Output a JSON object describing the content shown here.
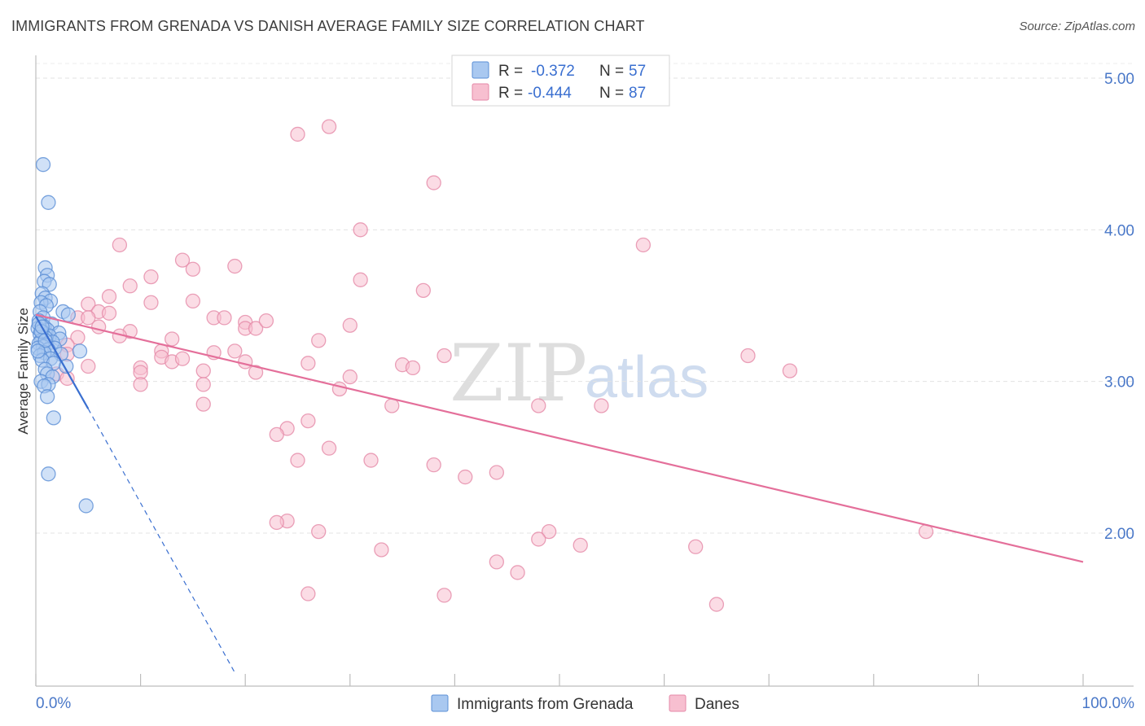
{
  "title": "IMMIGRANTS FROM GRENADA VS DANISH AVERAGE FAMILY SIZE CORRELATION CHART",
  "source": "Source: ZipAtlas.com",
  "watermark": {
    "zip": "ZIP",
    "atlas": "atlas"
  },
  "legend_top": [
    {
      "r_label": "R =",
      "r_value": "-0.372",
      "n_label": "N =",
      "n_value": "57",
      "color": "#a9c8f0",
      "edge": "#5b8fd6"
    },
    {
      "r_label": "R =",
      "r_value": "-0.444",
      "n_label": "N =",
      "n_value": "87",
      "color": "#f7bfd0",
      "edge": "#e58aa8"
    }
  ],
  "legend_bottom": [
    "Immigrants from Grenada",
    "Danes"
  ],
  "chart_data": {
    "type": "scatter",
    "title": "IMMIGRANTS FROM GRENADA VS DANISH AVERAGE FAMILY SIZE CORRELATION CHART",
    "xlabel": "",
    "ylabel": "Average Family Size",
    "xlim": [
      0,
      100
    ],
    "ylim": [
      1.0,
      5.2
    ],
    "x_tick_labels": [
      "0.0%",
      "100.0%"
    ],
    "y_ticks": [
      2.0,
      3.0,
      4.0,
      5.0
    ],
    "y_tick_labels": [
      "2.00",
      "3.00",
      "4.00",
      "5.00"
    ],
    "series": [
      {
        "name": "Immigrants from Grenada",
        "color": "#a9c8f0",
        "edge": "#5b8fd6",
        "trend": {
          "x0": 0,
          "y0": 3.43,
          "x1": 5,
          "y1": 2.82,
          "dash_x1": 19,
          "dash_y1": 1.08,
          "color": "#3a6fd0"
        },
        "points": [
          [
            0.7,
            4.43
          ],
          [
            1.2,
            4.18
          ],
          [
            0.9,
            3.75
          ],
          [
            1.1,
            3.7
          ],
          [
            0.8,
            3.66
          ],
          [
            1.3,
            3.64
          ],
          [
            0.6,
            3.58
          ],
          [
            0.9,
            3.55
          ],
          [
            1.4,
            3.53
          ],
          [
            0.5,
            3.52
          ],
          [
            1.0,
            3.5
          ],
          [
            0.4,
            3.46
          ],
          [
            2.6,
            3.46
          ],
          [
            3.1,
            3.44
          ],
          [
            0.7,
            3.42
          ],
          [
            0.3,
            3.4
          ],
          [
            1.5,
            3.38
          ],
          [
            0.8,
            3.36
          ],
          [
            0.2,
            3.35
          ],
          [
            1.1,
            3.34
          ],
          [
            0.6,
            3.33
          ],
          [
            2.2,
            3.32
          ],
          [
            0.4,
            3.31
          ],
          [
            1.3,
            3.3
          ],
          [
            0.9,
            3.29
          ],
          [
            2.3,
            3.28
          ],
          [
            0.5,
            3.27
          ],
          [
            1.6,
            3.26
          ],
          [
            0.3,
            3.25
          ],
          [
            1.0,
            3.24
          ],
          [
            0.7,
            3.23
          ],
          [
            1.8,
            3.22
          ],
          [
            0.2,
            3.22
          ],
          [
            1.2,
            3.21
          ],
          [
            4.2,
            3.2
          ],
          [
            0.8,
            3.19
          ],
          [
            2.4,
            3.18
          ],
          [
            0.4,
            3.17
          ],
          [
            1.4,
            3.15
          ],
          [
            0.6,
            3.14
          ],
          [
            1.7,
            3.12
          ],
          [
            2.9,
            3.1
          ],
          [
            0.9,
            3.08
          ],
          [
            1.1,
            3.05
          ],
          [
            1.6,
            3.03
          ],
          [
            0.5,
            3.0
          ],
          [
            1.2,
            2.98
          ],
          [
            0.8,
            2.97
          ],
          [
            1.1,
            2.9
          ],
          [
            1.7,
            2.76
          ],
          [
            1.2,
            2.39
          ],
          [
            4.8,
            2.18
          ],
          [
            0.3,
            3.38
          ],
          [
            0.5,
            3.33
          ],
          [
            0.9,
            3.27
          ],
          [
            0.2,
            3.2
          ],
          [
            0.6,
            3.36
          ]
        ]
      },
      {
        "name": "Danes",
        "color": "#f7bfd0",
        "edge": "#e58aa8",
        "trend": {
          "x0": 0,
          "y0": 3.44,
          "x1": 100,
          "y1": 1.81,
          "color": "#e46f9a"
        },
        "points": [
          [
            25,
            4.63
          ],
          [
            28,
            4.68
          ],
          [
            38,
            4.31
          ],
          [
            31,
            4.0
          ],
          [
            8,
            3.9
          ],
          [
            58,
            3.9
          ],
          [
            14,
            3.8
          ],
          [
            19,
            3.76
          ],
          [
            15,
            3.74
          ],
          [
            11,
            3.69
          ],
          [
            31,
            3.67
          ],
          [
            9,
            3.63
          ],
          [
            37,
            3.6
          ],
          [
            7,
            3.56
          ],
          [
            15,
            3.53
          ],
          [
            11,
            3.52
          ],
          [
            5,
            3.51
          ],
          [
            6,
            3.46
          ],
          [
            7,
            3.45
          ],
          [
            4,
            3.42
          ],
          [
            17,
            3.42
          ],
          [
            18,
            3.42
          ],
          [
            5,
            3.42
          ],
          [
            20,
            3.39
          ],
          [
            30,
            3.37
          ],
          [
            6,
            3.36
          ],
          [
            20,
            3.35
          ],
          [
            21,
            3.35
          ],
          [
            9,
            3.33
          ],
          [
            4,
            3.29
          ],
          [
            13,
            3.28
          ],
          [
            27,
            3.27
          ],
          [
            3,
            3.24
          ],
          [
            12,
            3.2
          ],
          [
            17,
            3.19
          ],
          [
            3,
            3.18
          ],
          [
            68,
            3.17
          ],
          [
            39,
            3.17
          ],
          [
            12,
            3.16
          ],
          [
            20,
            3.13
          ],
          [
            13,
            3.13
          ],
          [
            26,
            3.12
          ],
          [
            35,
            3.11
          ],
          [
            36,
            3.09
          ],
          [
            10,
            3.09
          ],
          [
            72,
            3.07
          ],
          [
            16,
            3.07
          ],
          [
            21,
            3.06
          ],
          [
            10,
            3.06
          ],
          [
            2,
            3.05
          ],
          [
            30,
            3.03
          ],
          [
            3,
            3.02
          ],
          [
            16,
            2.98
          ],
          [
            10,
            2.98
          ],
          [
            29,
            2.95
          ],
          [
            34,
            2.84
          ],
          [
            48,
            2.84
          ],
          [
            54,
            2.84
          ],
          [
            16,
            2.85
          ],
          [
            26,
            2.74
          ],
          [
            24,
            2.69
          ],
          [
            23,
            2.65
          ],
          [
            28,
            2.56
          ],
          [
            25,
            2.48
          ],
          [
            32,
            2.48
          ],
          [
            38,
            2.45
          ],
          [
            44,
            2.4
          ],
          [
            41,
            2.37
          ],
          [
            24,
            2.08
          ],
          [
            23,
            2.07
          ],
          [
            27,
            2.01
          ],
          [
            49,
            2.01
          ],
          [
            48,
            1.96
          ],
          [
            52,
            1.92
          ],
          [
            63,
            1.91
          ],
          [
            33,
            1.89
          ],
          [
            44,
            1.81
          ],
          [
            46,
            1.74
          ],
          [
            26,
            1.6
          ],
          [
            39,
            1.59
          ],
          [
            65,
            1.53
          ],
          [
            85,
            2.01
          ],
          [
            8,
            3.3
          ],
          [
            22,
            3.4
          ],
          [
            14,
            3.15
          ],
          [
            5,
            3.1
          ],
          [
            19,
            3.2
          ]
        ]
      }
    ]
  }
}
